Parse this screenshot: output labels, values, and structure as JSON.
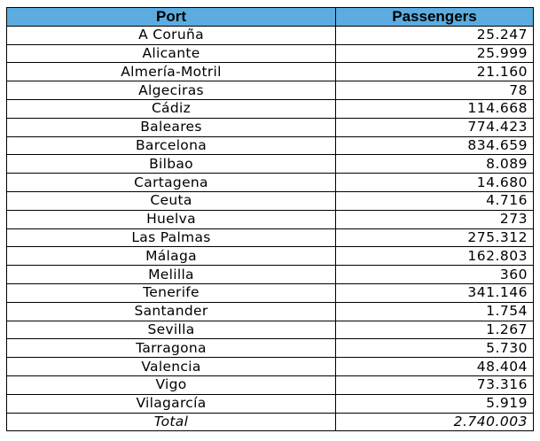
{
  "table": {
    "headers": [
      "Port",
      "Passengers"
    ],
    "rows": [
      {
        "port": "A Coruña",
        "passengers": "25.247"
      },
      {
        "port": "Alicante",
        "passengers": "25.999"
      },
      {
        "port": "Almería-Motril",
        "passengers": "21.160"
      },
      {
        "port": "Algeciras",
        "passengers": "78"
      },
      {
        "port": "Cádiz",
        "passengers": "114.668"
      },
      {
        "port": "Baleares",
        "passengers": "774.423"
      },
      {
        "port": "Barcelona",
        "passengers": "834.659"
      },
      {
        "port": "Bilbao",
        "passengers": "8.089"
      },
      {
        "port": "Cartagena",
        "passengers": "14.680"
      },
      {
        "port": "Ceuta",
        "passengers": "4.716"
      },
      {
        "port": "Huelva",
        "passengers": "273"
      },
      {
        "port": "Las Palmas",
        "passengers": "275.312"
      },
      {
        "port": "Málaga",
        "passengers": "162.803"
      },
      {
        "port": "Melilla",
        "passengers": "360"
      },
      {
        "port": "Tenerife",
        "passengers": "341.146"
      },
      {
        "port": "Santander",
        "passengers": "1.754"
      },
      {
        "port": "Sevilla",
        "passengers": "1.267"
      },
      {
        "port": "Tarragona",
        "passengers": "5.730"
      },
      {
        "port": "Valencia",
        "passengers": "48.404"
      },
      {
        "port": "Vigo",
        "passengers": "73.316"
      },
      {
        "port": "Vilagarcía",
        "passengers": "5.919"
      }
    ],
    "total": {
      "label": "Total",
      "passengers": "2.740.003"
    }
  },
  "colors": {
    "header_background": "#5cacdf",
    "border": "#000000"
  }
}
